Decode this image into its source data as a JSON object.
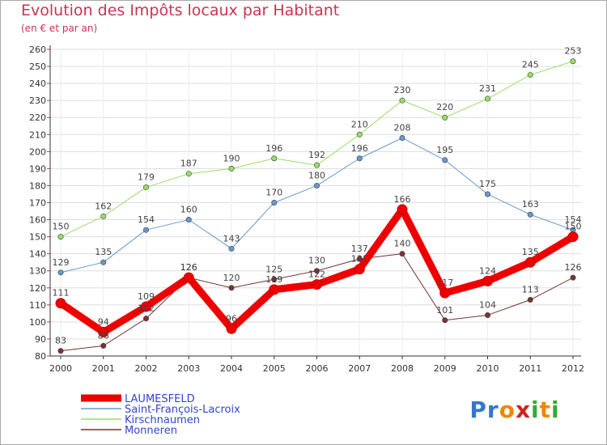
{
  "title": "Evolution des Impôts locaux par Habitant",
  "subtitle": "(en € et par an)",
  "logo_text": "Proxiti",
  "colors": {
    "title": "#cc3355",
    "background": "#ffffff",
    "plot_background": "#ffffff",
    "grid": "#dddddd",
    "axis": "#333333"
  },
  "chart_data": {
    "type": "line",
    "title": "Evolution des Impôts locaux par Habitant",
    "subtitle": "(en € et par an)",
    "xlabel": "",
    "ylabel": "",
    "x": [
      "2000",
      "2001",
      "2002",
      "2003",
      "2004",
      "2005",
      "2006",
      "2007",
      "2008",
      "2009",
      "2010",
      "2011",
      "2012"
    ],
    "ylim": [
      80,
      260
    ],
    "yticks": [
      80,
      90,
      100,
      110,
      120,
      130,
      140,
      150,
      160,
      170,
      180,
      190,
      200,
      210,
      220,
      230,
      240,
      250,
      260
    ],
    "grid": "horizontal",
    "legend_position": "bottom-left",
    "series": [
      {
        "name": "LAUMESFELD",
        "color": "#ee0000",
        "values": [
          111,
          94,
          109,
          126,
          96,
          119,
          122,
          131,
          166,
          117,
          124,
          135,
          150
        ],
        "labels": [
          "111",
          "94",
          "109",
          "126",
          "96",
          "119",
          "122",
          "131",
          "166",
          "117",
          "124",
          "135",
          "150"
        ],
        "width": 9
      },
      {
        "name": "Saint-François-Lacroix",
        "color": "#6699cc",
        "values": [
          129,
          135,
          154,
          160,
          143,
          170,
          180,
          196,
          208,
          195,
          175,
          163,
          154
        ],
        "labels": [
          "129",
          "135",
          "154",
          "160",
          "143",
          "170",
          "180",
          "196",
          "208",
          "195",
          "175",
          "163",
          "154"
        ],
        "width": 1
      },
      {
        "name": "Kirschnaumen",
        "color": "#99dd66",
        "values": [
          150,
          162,
          179,
          187,
          190,
          196,
          192,
          210,
          230,
          220,
          231,
          245,
          253
        ],
        "labels": [
          "150",
          "162",
          "179",
          "187",
          "190",
          "196",
          "192",
          "210",
          "230",
          "220",
          "231",
          "245",
          "253"
        ],
        "width": 1
      },
      {
        "name": "Monneren",
        "color": "#773333",
        "values": [
          83,
          86,
          102,
          126,
          120,
          125,
          130,
          137,
          140,
          101,
          104,
          113,
          126
        ],
        "labels": [
          "83",
          "86",
          "102",
          "126",
          "120",
          "125",
          "130",
          "137",
          "140",
          "101",
          "104",
          "113",
          "126"
        ],
        "width": 1
      }
    ]
  }
}
